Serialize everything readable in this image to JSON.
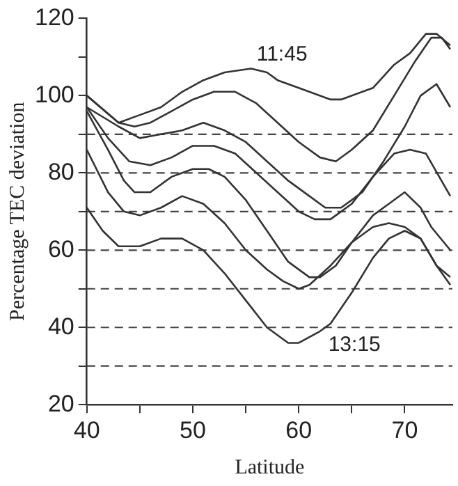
{
  "chart_data": {
    "type": "line",
    "xlabel": "Latitude",
    "ylabel": "Percentage TEC deviation",
    "xlim": [
      40,
      74.5
    ],
    "xticks": [
      40,
      {
        "value": 45,
        "label": null
      },
      50,
      {
        "value": 55,
        "label": null
      },
      60,
      {
        "value": 65,
        "label": null
      },
      70
    ],
    "ylim": [
      20,
      120
    ],
    "yticks": [
      20,
      {
        "value": 30,
        "label": null
      },
      40,
      {
        "value": 50,
        "label": null
      },
      60,
      {
        "value": 70,
        "label": null
      },
      80,
      {
        "value": 90,
        "label": null
      },
      100,
      {
        "value": 110,
        "label": null
      },
      120
    ],
    "grid": false,
    "legend": false,
    "marker": "none",
    "line_style": "solid",
    "series": [
      {
        "color": "#333333",
        "x": [
          40,
          43,
          45,
          47,
          49,
          51,
          53,
          55.5,
          57,
          58,
          60,
          63,
          64,
          67,
          69,
          70.5,
          72,
          73,
          74.3
        ],
        "values": [
          100,
          93,
          95,
          97,
          101,
          104,
          106,
          107,
          106,
          104,
          102,
          99,
          99,
          102,
          108,
          111,
          116,
          116,
          113
        ]
      },
      {
        "color": "#333333",
        "x": [
          40,
          43,
          44.5,
          46,
          48,
          50,
          52,
          54,
          56,
          58,
          60,
          62,
          63.5,
          65,
          67,
          69,
          71,
          72.5,
          73.5,
          74.3
        ],
        "values": [
          100,
          93,
          92,
          93,
          96,
          99,
          101,
          101,
          98,
          93,
          88,
          84,
          83,
          86,
          91,
          100,
          109,
          115,
          115,
          112
        ]
      },
      {
        "color": "#333333",
        "x": [
          40,
          43,
          45,
          47,
          49,
          51,
          53,
          55,
          57,
          59,
          61,
          62.5,
          64,
          66,
          68,
          70,
          71.5,
          73,
          74.3
        ],
        "values": [
          97,
          92,
          89,
          90,
          91,
          93,
          91,
          88,
          83,
          78,
          74,
          71,
          71,
          75,
          83,
          92,
          100,
          103,
          97
        ]
      },
      {
        "color": "#333333",
        "x": [
          40,
          42,
          44,
          46,
          48,
          50,
          52,
          54,
          56,
          58,
          60,
          61.5,
          63,
          65,
          67,
          69,
          70.5,
          72,
          74.3
        ],
        "values": [
          97,
          89,
          83,
          82,
          84,
          87,
          87,
          85,
          80,
          75,
          70,
          68,
          68,
          72,
          79,
          85,
          86,
          85,
          74
        ]
      },
      {
        "color": "#333333",
        "x": [
          40,
          42,
          43.5,
          44.5,
          46,
          48,
          50,
          51.5,
          53,
          55,
          57,
          59,
          61,
          62,
          63.5,
          65,
          67,
          68.5,
          70,
          71.5,
          72.5,
          74.3
        ],
        "values": [
          96,
          86,
          78,
          75,
          75,
          79,
          81,
          81,
          79,
          73,
          65,
          57,
          53,
          53,
          56,
          62,
          69,
          72,
          75,
          71,
          66,
          60
        ]
      },
      {
        "color": "#333333",
        "x": [
          40,
          42,
          43.5,
          45,
          47,
          49,
          51,
          53,
          55,
          57,
          58.5,
          60,
          61,
          63,
          65,
          67,
          68.5,
          70,
          71.5,
          73,
          74.3
        ],
        "values": [
          86,
          75,
          70,
          69,
          71,
          74,
          72,
          67,
          60,
          55,
          52,
          50,
          51,
          56,
          62,
          66,
          67,
          66,
          63,
          56,
          53
        ]
      },
      {
        "color": "#333333",
        "x": [
          40,
          41.5,
          43,
          45,
          47,
          49,
          51,
          53,
          55,
          57,
          59,
          60,
          62,
          63,
          65,
          67,
          68.5,
          70,
          71.5,
          73,
          74.3
        ],
        "values": [
          71,
          65,
          61,
          61,
          63,
          63,
          60,
          54,
          47,
          40,
          36,
          36,
          39,
          41,
          49,
          58,
          63,
          65,
          63,
          56,
          51
        ]
      }
    ],
    "ref_lines": [
      {
        "axis": "y",
        "value": 30,
        "color": "#444444",
        "line_style": "dashed"
      },
      {
        "axis": "y",
        "value": 40,
        "color": "#444444",
        "line_style": "dashed"
      },
      {
        "axis": "y",
        "value": 50,
        "color": "#444444",
        "line_style": "dashed"
      },
      {
        "axis": "y",
        "value": 60,
        "color": "#444444",
        "line_style": "dashed"
      },
      {
        "axis": "y",
        "value": 70,
        "color": "#444444",
        "line_style": "dashed"
      },
      {
        "axis": "y",
        "value": 80,
        "color": "#444444",
        "line_style": "dashed"
      },
      {
        "axis": "y",
        "value": 90,
        "color": "#444444",
        "line_style": "dashed"
      }
    ],
    "annotations": [
      {
        "text": "11:45",
        "x": 55.5,
        "y": 107
      },
      {
        "text": "13:15",
        "x": 62,
        "y": 39
      }
    ]
  }
}
